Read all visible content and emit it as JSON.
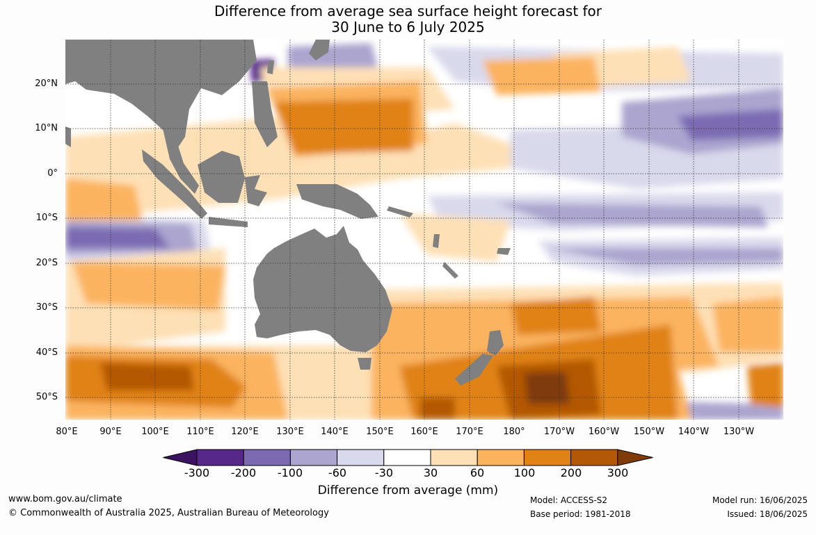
{
  "title": {
    "line1": "Difference from average sea surface height forecast for",
    "line2": "30 June to 6 July 2025"
  },
  "lat_labels": [
    "20°N",
    "10°N",
    "0°",
    "10°S",
    "20°S",
    "30°S",
    "40°S",
    "50°S"
  ],
  "lon_labels": [
    "80°E",
    "90°E",
    "100°E",
    "110°E",
    "120°E",
    "130°E",
    "140°E",
    "150°E",
    "160°E",
    "170°E",
    "180°",
    "170°W",
    "160°W",
    "150°W",
    "140°W",
    "130°W"
  ],
  "legend": {
    "title": "Difference from average (mm)",
    "ticks": [
      "-300",
      "-200",
      "-100",
      "-60",
      "-30",
      "30",
      "60",
      "100",
      "200",
      "300"
    ],
    "colors": [
      "#3b1361",
      "#55288a",
      "#7b6ab2",
      "#aba5cf",
      "#d9d9ec",
      "#ffffff",
      "#fee0b6",
      "#fbb35e",
      "#e08214",
      "#b35806",
      "#7f3b08"
    ]
  },
  "land_color": "#808080",
  "footer": {
    "website": "www.bom.gov.au/climate",
    "copyright": "© Commonwealth of Australia 2025, Australian Bureau of Meteorology",
    "model": "Model: ACCESS-S2",
    "base_period": "Base period: 1981-2018",
    "model_run": "Model run: 16/06/2025",
    "issued": "Issued: 18/06/2025"
  }
}
